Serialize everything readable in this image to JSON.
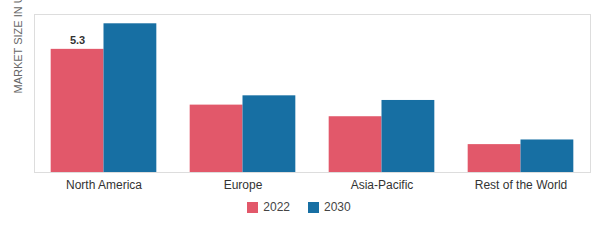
{
  "chart_data": {
    "type": "bar",
    "ylabel": "MARKET SIZE IN USD BN",
    "categories": [
      "North America",
      "Europe",
      "Asia-Pacific",
      "Rest of the World"
    ],
    "series": [
      {
        "name": "2022",
        "color": "#e2586a",
        "values": [
          5.3,
          2.9,
          2.4,
          1.2
        ],
        "value_labels": [
          "5.3",
          null,
          null,
          null
        ]
      },
      {
        "name": "2030",
        "color": "#176fa3",
        "values": [
          6.4,
          3.3,
          3.1,
          1.4
        ]
      }
    ],
    "ylim": [
      0,
      6.8
    ],
    "tick_labels": "x",
    "grid": false,
    "data_labels": true,
    "legend": "bottom"
  }
}
